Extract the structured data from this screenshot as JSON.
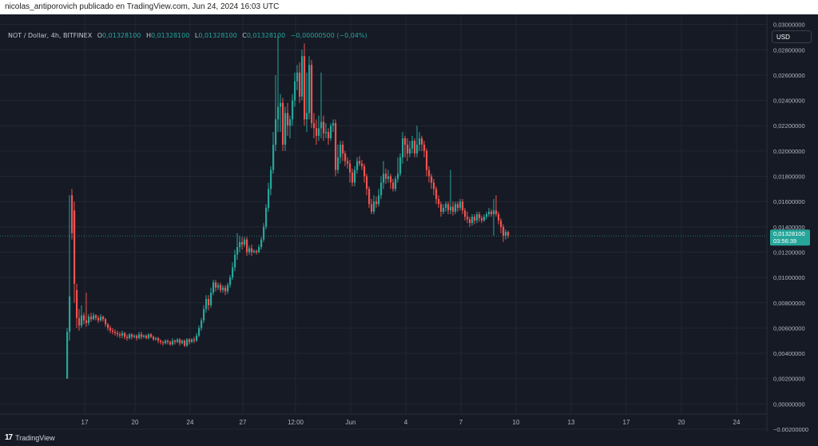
{
  "header": {
    "attribution": "nicolas_antiporovich publicado en TradingView.com, Jun 24, 2024 16:03 UTC"
  },
  "legend": {
    "symbol": "NOT / Dollar, 4h, BITFINEX",
    "open_label": "O",
    "open": "0,01328100",
    "high_label": "H",
    "high": "0,01328100",
    "low_label": "L",
    "low": "0,01328100",
    "close_label": "C",
    "close": "0,01328100",
    "change": "−0,00000500 (−0,04%)"
  },
  "toolbar": {
    "currency": "USD"
  },
  "price_tag": {
    "price": "0,01328100",
    "countdown": "03:56:39"
  },
  "footer": {
    "brand": "TradingView"
  },
  "colors": {
    "up": "#26a69a",
    "down": "#ef5350",
    "background": "#161a25",
    "grid": "#232733",
    "axis_text": "#b2b5be"
  },
  "chart_data": {
    "type": "candlestick",
    "interval": "4h",
    "exchange": "BITFINEX",
    "ylim": [
      -0.0008,
      0.0308
    ],
    "y_ticks": [
      "0,03000000",
      "0,02800000",
      "0,02600000",
      "0,02400000",
      "0,02200000",
      "0,02000000",
      "0,01800000",
      "0,01600000",
      "0,01400000",
      "0,01200000",
      "0,01000000",
      "0,00800000",
      "0,00600000",
      "0,00400000",
      "0,00200000",
      "0,00000000",
      "−0,00200000"
    ],
    "y_tick_values": [
      0.03,
      0.028,
      0.026,
      0.024,
      0.022,
      0.02,
      0.018,
      0.016,
      0.014,
      0.012,
      0.01,
      0.008,
      0.006,
      0.004,
      0.002,
      0.0,
      -0.002
    ],
    "x_labels": [
      "17",
      "20",
      "24",
      "27",
      "12:00",
      "Jun",
      "4",
      "7",
      "10",
      "13",
      "17",
      "20",
      "24"
    ],
    "x_label_bar_index": [
      6,
      27,
      50,
      72,
      94,
      117,
      140,
      163,
      186,
      209,
      232,
      255,
      278
    ],
    "last_price": 0.013281,
    "grid": true,
    "candles": [
      [
        0.002,
        0.0057,
        0.002,
        0.006
      ],
      [
        0.0057,
        0.0085,
        0.005,
        0.0165
      ],
      [
        0.0165,
        0.0135,
        0.013,
        0.017
      ],
      [
        0.0153,
        0.0095,
        0.008,
        0.016
      ],
      [
        0.009,
        0.0068,
        0.006,
        0.0095
      ],
      [
        0.0068,
        0.0062,
        0.0058,
        0.0075
      ],
      [
        0.0062,
        0.007,
        0.006,
        0.0078
      ],
      [
        0.007,
        0.0066,
        0.0063,
        0.0072
      ],
      [
        0.0066,
        0.0064,
        0.0061,
        0.0088
      ],
      [
        0.0064,
        0.0069,
        0.0062,
        0.0071
      ],
      [
        0.0069,
        0.0067,
        0.0065,
        0.0072
      ],
      [
        0.0067,
        0.007,
        0.0066,
        0.0072
      ],
      [
        0.007,
        0.0068,
        0.0066,
        0.0071
      ],
      [
        0.0068,
        0.0066,
        0.0064,
        0.007
      ],
      [
        0.0066,
        0.0069,
        0.0065,
        0.0071
      ],
      [
        0.0069,
        0.0067,
        0.0065,
        0.007
      ],
      [
        0.0067,
        0.0063,
        0.0061,
        0.0068
      ],
      [
        0.0063,
        0.006,
        0.0058,
        0.0064
      ],
      [
        0.006,
        0.0058,
        0.0056,
        0.0062
      ],
      [
        0.0058,
        0.0057,
        0.0055,
        0.006
      ],
      [
        0.0057,
        0.0056,
        0.0054,
        0.0059
      ],
      [
        0.0056,
        0.0055,
        0.0053,
        0.0058
      ],
      [
        0.0055,
        0.0054,
        0.0052,
        0.0057
      ],
      [
        0.0054,
        0.0056,
        0.0052,
        0.0058
      ],
      [
        0.0056,
        0.0053,
        0.0051,
        0.0057
      ],
      [
        0.0053,
        0.0052,
        0.005,
        0.0055
      ],
      [
        0.0052,
        0.0055,
        0.0051,
        0.0056
      ],
      [
        0.0055,
        0.0053,
        0.0051,
        0.0056
      ],
      [
        0.0053,
        0.0054,
        0.0052,
        0.0055
      ],
      [
        0.0054,
        0.0052,
        0.005,
        0.0055
      ],
      [
        0.0052,
        0.0055,
        0.0051,
        0.0057
      ],
      [
        0.0055,
        0.0053,
        0.0051,
        0.0057
      ],
      [
        0.0053,
        0.0054,
        0.0052,
        0.0055
      ],
      [
        0.0054,
        0.0052,
        0.0051,
        0.0055
      ],
      [
        0.0052,
        0.0055,
        0.0051,
        0.0056
      ],
      [
        0.0055,
        0.0053,
        0.0052,
        0.0056
      ],
      [
        0.0053,
        0.0051,
        0.005,
        0.0054
      ],
      [
        0.0051,
        0.0052,
        0.005,
        0.0053
      ],
      [
        0.0052,
        0.005,
        0.0048,
        0.0053
      ],
      [
        0.005,
        0.0049,
        0.0047,
        0.0051
      ],
      [
        0.0049,
        0.0048,
        0.0046,
        0.005
      ],
      [
        0.0048,
        0.005,
        0.0047,
        0.0051
      ],
      [
        0.005,
        0.0049,
        0.0047,
        0.0051
      ],
      [
        0.0049,
        0.0047,
        0.0046,
        0.005
      ],
      [
        0.0047,
        0.005,
        0.0046,
        0.0052
      ],
      [
        0.005,
        0.0049,
        0.0047,
        0.0051
      ],
      [
        0.0049,
        0.0051,
        0.0048,
        0.0052
      ],
      [
        0.0051,
        0.0048,
        0.0046,
        0.0052
      ],
      [
        0.0048,
        0.005,
        0.0047,
        0.0051
      ],
      [
        0.005,
        0.0046,
        0.0045,
        0.0051
      ],
      [
        0.0046,
        0.0051,
        0.0045,
        0.0052
      ],
      [
        0.0051,
        0.0049,
        0.0047,
        0.0052
      ],
      [
        0.0049,
        0.0051,
        0.0048,
        0.0052
      ],
      [
        0.0051,
        0.005,
        0.0048,
        0.0053
      ],
      [
        0.005,
        0.0054,
        0.0049,
        0.0056
      ],
      [
        0.0054,
        0.006,
        0.0053,
        0.0062
      ],
      [
        0.006,
        0.0066,
        0.0058,
        0.0068
      ],
      [
        0.0066,
        0.0075,
        0.0064,
        0.0078
      ],
      [
        0.0075,
        0.0083,
        0.0072,
        0.0086
      ],
      [
        0.0083,
        0.0078,
        0.0074,
        0.0086
      ],
      [
        0.0078,
        0.0088,
        0.0076,
        0.0092
      ],
      [
        0.0088,
        0.0096,
        0.0086,
        0.0098
      ],
      [
        0.0096,
        0.0092,
        0.0089,
        0.0098
      ],
      [
        0.0092,
        0.0094,
        0.009,
        0.0096
      ],
      [
        0.0094,
        0.009,
        0.0088,
        0.0096
      ],
      [
        0.009,
        0.0092,
        0.0088,
        0.0094
      ],
      [
        0.0092,
        0.0089,
        0.0086,
        0.0094
      ],
      [
        0.0089,
        0.0094,
        0.0087,
        0.0096
      ],
      [
        0.0094,
        0.01,
        0.0092,
        0.0102
      ],
      [
        0.01,
        0.0108,
        0.0098,
        0.0112
      ],
      [
        0.0108,
        0.0118,
        0.0105,
        0.0122
      ],
      [
        0.0118,
        0.0124,
        0.0114,
        0.0135
      ],
      [
        0.0124,
        0.0128,
        0.012,
        0.0133
      ],
      [
        0.0128,
        0.0126,
        0.0122,
        0.0132
      ],
      [
        0.0126,
        0.013,
        0.0124,
        0.0132
      ],
      [
        0.013,
        0.012,
        0.0117,
        0.0132
      ],
      [
        0.012,
        0.0123,
        0.0118,
        0.0125
      ],
      [
        0.0123,
        0.012,
        0.0117,
        0.0126
      ],
      [
        0.012,
        0.0121,
        0.0119,
        0.0122
      ],
      [
        0.0121,
        0.012,
        0.0118,
        0.0122
      ],
      [
        0.012,
        0.0124,
        0.0119,
        0.0126
      ],
      [
        0.0124,
        0.013,
        0.0122,
        0.0132
      ],
      [
        0.013,
        0.014,
        0.0128,
        0.0143
      ],
      [
        0.014,
        0.0155,
        0.0138,
        0.0158
      ],
      [
        0.0155,
        0.017,
        0.0152,
        0.0175
      ],
      [
        0.017,
        0.0185,
        0.0165,
        0.0188
      ],
      [
        0.0185,
        0.0205,
        0.0182,
        0.0215
      ],
      [
        0.0205,
        0.0225,
        0.02,
        0.026
      ],
      [
        0.0225,
        0.0235,
        0.0215,
        0.0292
      ],
      [
        0.0235,
        0.0238,
        0.0215,
        0.0245
      ],
      [
        0.0238,
        0.0205,
        0.02,
        0.0242
      ],
      [
        0.0205,
        0.023,
        0.02,
        0.0235
      ],
      [
        0.023,
        0.022,
        0.0212,
        0.0238
      ],
      [
        0.022,
        0.0225,
        0.021,
        0.0228
      ],
      [
        0.0225,
        0.024,
        0.022,
        0.0245
      ],
      [
        0.024,
        0.0255,
        0.0235,
        0.0262
      ],
      [
        0.0255,
        0.0262,
        0.0248,
        0.0268
      ],
      [
        0.0262,
        0.0243,
        0.0238,
        0.027
      ],
      [
        0.0243,
        0.0275,
        0.024,
        0.028
      ],
      [
        0.0275,
        0.0225,
        0.022,
        0.0285
      ],
      [
        0.0225,
        0.023,
        0.0215,
        0.0262
      ],
      [
        0.023,
        0.0268,
        0.0225,
        0.0275
      ],
      [
        0.0268,
        0.0222,
        0.0218,
        0.0272
      ],
      [
        0.0222,
        0.0218,
        0.021,
        0.023
      ],
      [
        0.0218,
        0.0212,
        0.0205,
        0.0225
      ],
      [
        0.0212,
        0.0218,
        0.0208,
        0.0228
      ],
      [
        0.0218,
        0.0223,
        0.021,
        0.0262
      ],
      [
        0.0223,
        0.0214,
        0.0208,
        0.0228
      ],
      [
        0.0214,
        0.0215,
        0.021,
        0.0222
      ],
      [
        0.0215,
        0.021,
        0.0205,
        0.0218
      ],
      [
        0.021,
        0.022,
        0.0208,
        0.0222
      ],
      [
        0.022,
        0.0222,
        0.0215,
        0.0225
      ],
      [
        0.0222,
        0.0185,
        0.018,
        0.0225
      ],
      [
        0.0185,
        0.0195,
        0.0182,
        0.0205
      ],
      [
        0.0195,
        0.0205,
        0.019,
        0.0208
      ],
      [
        0.0205,
        0.0198,
        0.0192,
        0.0208
      ],
      [
        0.0198,
        0.0192,
        0.0188,
        0.02
      ],
      [
        0.0192,
        0.019,
        0.0186,
        0.0195
      ],
      [
        0.019,
        0.0183,
        0.0175,
        0.0193
      ],
      [
        0.0183,
        0.0175,
        0.0172,
        0.0186
      ],
      [
        0.0175,
        0.0185,
        0.0172,
        0.0188
      ],
      [
        0.0185,
        0.0192,
        0.0182,
        0.0195
      ],
      [
        0.0192,
        0.019,
        0.0188,
        0.0196
      ],
      [
        0.019,
        0.0188,
        0.0185,
        0.0193
      ],
      [
        0.0188,
        0.018,
        0.0175,
        0.019
      ],
      [
        0.018,
        0.017,
        0.0165,
        0.0182
      ],
      [
        0.017,
        0.0158,
        0.0155,
        0.0172
      ],
      [
        0.0158,
        0.0152,
        0.015,
        0.0162
      ],
      [
        0.0152,
        0.016,
        0.015,
        0.0165
      ],
      [
        0.016,
        0.0158,
        0.0155,
        0.0164
      ],
      [
        0.0158,
        0.0165,
        0.0156,
        0.017
      ],
      [
        0.0165,
        0.0175,
        0.0162,
        0.018
      ],
      [
        0.0175,
        0.0182,
        0.017,
        0.0192
      ],
      [
        0.0182,
        0.0178,
        0.0174,
        0.0186
      ],
      [
        0.0178,
        0.018,
        0.0175,
        0.0185
      ],
      [
        0.018,
        0.0175,
        0.017,
        0.0182
      ],
      [
        0.0175,
        0.017,
        0.0168,
        0.0178
      ],
      [
        0.017,
        0.0178,
        0.0168,
        0.018
      ],
      [
        0.0178,
        0.0182,
        0.0175,
        0.0195
      ],
      [
        0.0182,
        0.0195,
        0.018,
        0.0198
      ],
      [
        0.0195,
        0.021,
        0.019,
        0.0215
      ],
      [
        0.021,
        0.0205,
        0.0195,
        0.0212
      ],
      [
        0.0205,
        0.0198,
        0.0192,
        0.021
      ],
      [
        0.0198,
        0.0202,
        0.0195,
        0.0208
      ],
      [
        0.0202,
        0.0208,
        0.0198,
        0.0212
      ],
      [
        0.0208,
        0.0198,
        0.0195,
        0.021
      ],
      [
        0.0198,
        0.0205,
        0.0195,
        0.022
      ],
      [
        0.0205,
        0.021,
        0.02,
        0.0215
      ],
      [
        0.021,
        0.0205,
        0.02,
        0.0212
      ],
      [
        0.0205,
        0.02,
        0.0195,
        0.0208
      ],
      [
        0.02,
        0.0185,
        0.018,
        0.0202
      ],
      [
        0.0185,
        0.018,
        0.0175,
        0.0188
      ],
      [
        0.018,
        0.0175,
        0.017,
        0.0182
      ],
      [
        0.0175,
        0.017,
        0.0165,
        0.0178
      ],
      [
        0.017,
        0.0162,
        0.0158,
        0.0172
      ],
      [
        0.0162,
        0.0158,
        0.0155,
        0.0165
      ],
      [
        0.0158,
        0.0152,
        0.0148,
        0.016
      ],
      [
        0.0152,
        0.0155,
        0.015,
        0.0158
      ],
      [
        0.0155,
        0.0158,
        0.0152,
        0.016
      ],
      [
        0.0158,
        0.0153,
        0.015,
        0.016
      ],
      [
        0.0153,
        0.0156,
        0.015,
        0.0185
      ],
      [
        0.0156,
        0.0152,
        0.0149,
        0.016
      ],
      [
        0.0152,
        0.0158,
        0.015,
        0.016
      ],
      [
        0.0158,
        0.0155,
        0.0152,
        0.016
      ],
      [
        0.0155,
        0.016,
        0.0153,
        0.0162
      ],
      [
        0.016,
        0.0153,
        0.015,
        0.0162
      ],
      [
        0.0153,
        0.0148,
        0.0145,
        0.0155
      ],
      [
        0.0148,
        0.0146,
        0.0143,
        0.0152
      ],
      [
        0.0146,
        0.0143,
        0.014,
        0.0148
      ],
      [
        0.0143,
        0.0148,
        0.0141,
        0.015
      ],
      [
        0.0148,
        0.0145,
        0.0142,
        0.015
      ],
      [
        0.0145,
        0.015,
        0.0143,
        0.0152
      ],
      [
        0.015,
        0.0147,
        0.0144,
        0.0152
      ],
      [
        0.0147,
        0.0145,
        0.0143,
        0.0149
      ],
      [
        0.0145,
        0.0148,
        0.0144,
        0.015
      ],
      [
        0.0148,
        0.015,
        0.0146,
        0.0152
      ],
      [
        0.015,
        0.0152,
        0.0148,
        0.0155
      ],
      [
        0.0152,
        0.015,
        0.0148,
        0.0154
      ],
      [
        0.015,
        0.0153,
        0.0133,
        0.0162
      ],
      [
        0.0153,
        0.015,
        0.0148,
        0.0165
      ],
      [
        0.015,
        0.0145,
        0.0142,
        0.0152
      ],
      [
        0.0145,
        0.014,
        0.0135,
        0.0147
      ],
      [
        0.014,
        0.0133,
        0.0128,
        0.0142
      ],
      [
        0.0133,
        0.0136,
        0.013,
        0.0138
      ],
      [
        0.0136,
        0.0133,
        0.0131,
        0.0137
      ]
    ]
  }
}
